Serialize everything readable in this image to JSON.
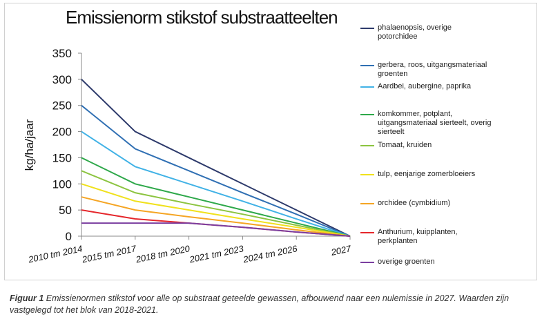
{
  "chart_data": {
    "type": "line",
    "title": "Emissienorm stikstof substraatteelten",
    "y_label": "kg/ha/jaar",
    "categories": [
      "2010 tm 2014",
      "2015 tm 2017",
      "2018 tm 2020",
      "2021 tm 2023",
      "2024 tm 2026",
      "2027"
    ],
    "ylim": [
      0,
      350
    ],
    "yticks": [
      0,
      50,
      100,
      150,
      200,
      250,
      300,
      350
    ],
    "grid": false,
    "legend": "right",
    "series": [
      {
        "name": "phalaenopsis, overige potorchidee",
        "color": "#2d3a6b",
        "values": [
          300,
          200,
          150,
          100,
          50,
          0
        ]
      },
      {
        "name": "gerbera, roos, uitgangsmateriaal groenten",
        "color": "#2f6fb3",
        "values": [
          250,
          167,
          125,
          83,
          42,
          0
        ]
      },
      {
        "name": "Aardbei, aubergine, paprika",
        "color": "#41b2e6",
        "values": [
          200,
          133,
          100,
          67,
          33,
          0
        ]
      },
      {
        "name": "komkommer, potplant, uitgangsmateriaal sierteelt, overig sierteelt",
        "color": "#2ea84a",
        "values": [
          150,
          100,
          75,
          50,
          25,
          0
        ]
      },
      {
        "name": "Tomaat, kruiden",
        "color": "#8cc440",
        "values": [
          125,
          83,
          62,
          42,
          21,
          0
        ]
      },
      {
        "name": "tulp, eenjarige zomerbloeiers",
        "color": "#f0e11c",
        "values": [
          100,
          67,
          50,
          33,
          17,
          0
        ]
      },
      {
        "name": "orchidee (cymbidium)",
        "color": "#f5a524",
        "values": [
          75,
          50,
          37,
          25,
          12,
          0
        ]
      },
      {
        "name": "Anthurium, kuipplanten, perkplanten",
        "color": "#e5262b",
        "values": [
          50,
          33,
          25,
          17,
          8,
          0
        ]
      },
      {
        "name": "overige groenten",
        "color": "#7b3fa0",
        "values": [
          25,
          25,
          25,
          17,
          8,
          0
        ]
      }
    ]
  },
  "caption_label": "Figuur 1",
  "caption": "Emissienormen stikstof voor alle op substraat geteelde gewassen, afbouwend naar een nulemissie in 2027. Waarden zijn vastgelegd tot het blok van 2018-2021."
}
